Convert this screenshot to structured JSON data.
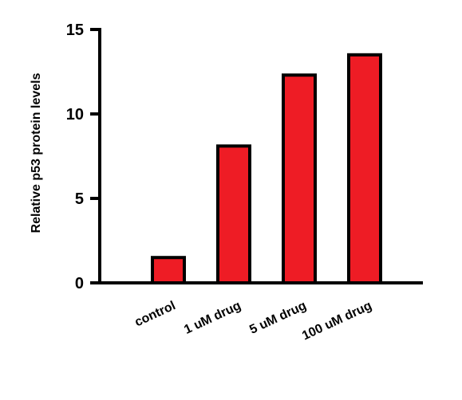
{
  "chart_data": {
    "type": "bar",
    "title": "",
    "xlabel": "",
    "ylabel": "Relative p53 protein levels",
    "categories": [
      "control",
      "1 uM drug",
      "5 uM drug",
      "100 uM drug"
    ],
    "values": [
      1.5,
      8.1,
      12.3,
      13.5
    ],
    "ylim": [
      0,
      15
    ],
    "yticks": [
      "0",
      "5",
      "10",
      "15"
    ],
    "bar_color": "#ee1c25",
    "bar_edge_color": "#000000",
    "grid": false,
    "legend": "none"
  }
}
